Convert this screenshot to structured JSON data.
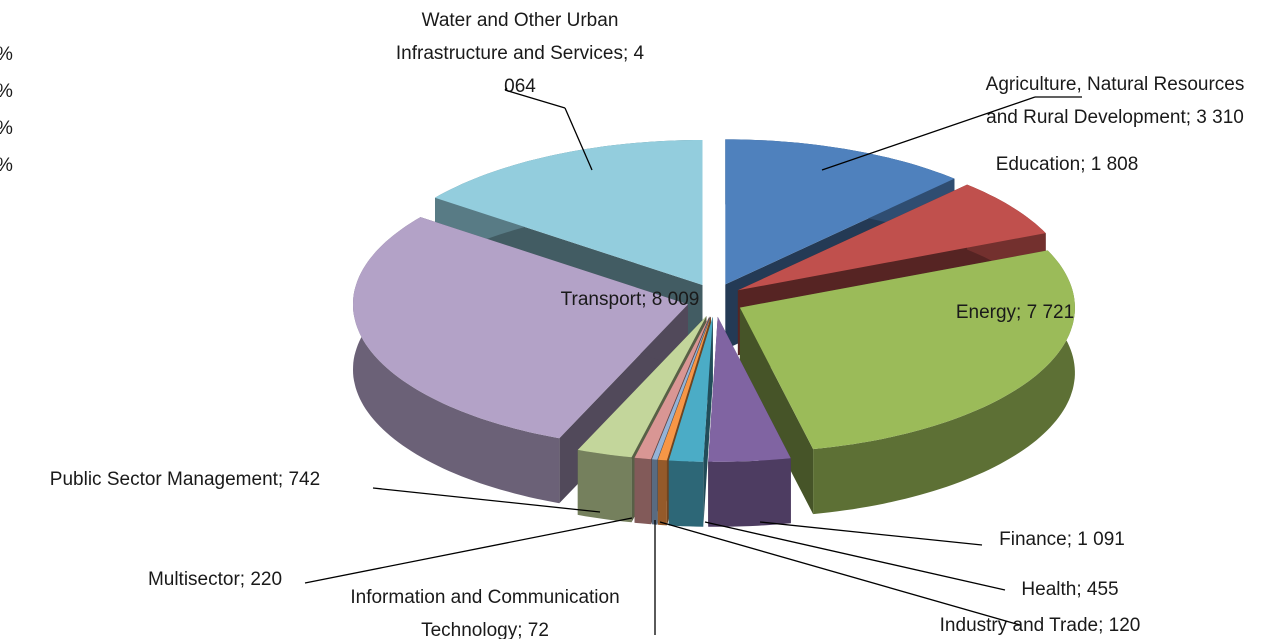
{
  "chart_data": {
    "type": "pie3d",
    "labels": [
      "Agriculture, Natural Resources and Rural Development; 3 310",
      "Education; 1 808",
      "Energy; 7 721",
      "Finance; 1 091",
      "Health; 455",
      "Industry and Trade; 120",
      "Information and Communication Technology; 72",
      "Multisector; 220",
      "Public Sector Management; 742",
      "Transport; 8 009",
      "Water and Other Urban Infrastructure and Services; 4 064"
    ],
    "values": [
      3310,
      1808,
      7721,
      1091,
      455,
      120,
      72,
      220,
      742,
      8009,
      4064
    ],
    "colors": [
      "#4f81bd",
      "#c0504d",
      "#9bbb59",
      "#8064a2",
      "#4bacc6",
      "#f79646",
      "#95b3d7",
      "#d99694",
      "#c3d69b",
      "#b3a2c7",
      "#93cddd"
    ],
    "annotations": [
      "%",
      "%",
      "%",
      "%"
    ]
  }
}
